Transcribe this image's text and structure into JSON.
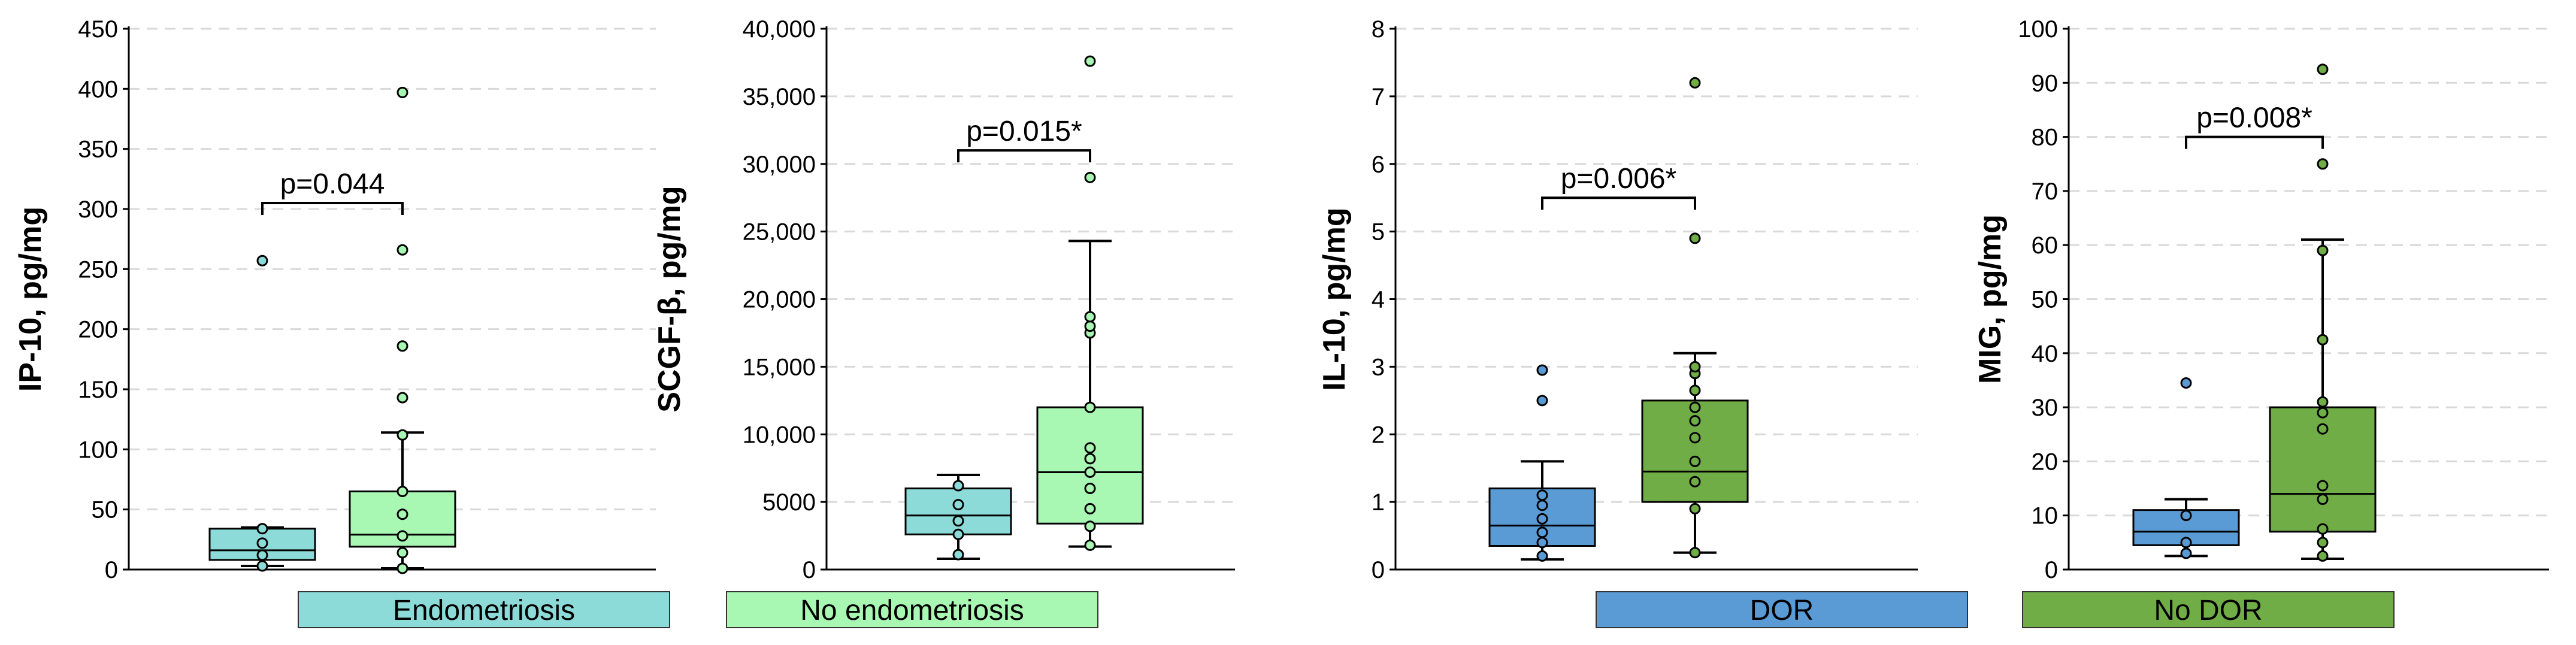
{
  "colors": {
    "endo": "#8ddbd8",
    "noendo": "#a8f7b2",
    "dor": "#5b9bd5",
    "nodor": "#70ad47"
  },
  "legend": [
    {
      "label": "Endometriosis",
      "color": "#8ddbd8"
    },
    {
      "label": "No endometriosis",
      "color": "#a8f7b2"
    },
    {
      "label": "DOR",
      "color": "#5b9bd5"
    },
    {
      "label": "No DOR",
      "color": "#70ad47"
    }
  ],
  "chart_data": [
    {
      "type": "box",
      "ylabel": "IP-10, pg/mg",
      "ylim": [
        0,
        450
      ],
      "ticks": [
        0,
        50,
        100,
        150,
        200,
        250,
        300,
        350,
        400,
        450
      ],
      "tick_labels": [
        "0",
        "50",
        "100",
        "150",
        "200",
        "250",
        "300",
        "350",
        "400",
        "450"
      ],
      "pvalue": "p=0.044",
      "pvalue_y": 305,
      "series": [
        {
          "name": "Endometriosis",
          "color": "#8ddbd8",
          "whisker_low": 3,
          "q1": 8,
          "median": 16,
          "q3": 34,
          "whisker_high": 35,
          "points": [
            3,
            12,
            22,
            34,
            257
          ]
        },
        {
          "name": "No endometriosis",
          "color": "#a8f7b2",
          "whisker_low": 1,
          "q1": 19,
          "median": 29,
          "q3": 65,
          "whisker_high": 114,
          "points": [
            1,
            14,
            28,
            46,
            65,
            112,
            143,
            186,
            266,
            397
          ]
        }
      ]
    },
    {
      "type": "box",
      "ylabel": "SCGF-β, pg/mg",
      "ylim": [
        0,
        40000
      ],
      "ticks": [
        0,
        5000,
        10000,
        15000,
        20000,
        25000,
        30000,
        35000,
        40000
      ],
      "tick_labels": [
        "0",
        "5000",
        "10,000",
        "15,000",
        "20,000",
        "25,000",
        "30,000",
        "35,000",
        "40,000"
      ],
      "pvalue": "p=0.015*",
      "pvalue_y": 31000,
      "series": [
        {
          "name": "Endometriosis",
          "color": "#8ddbd8",
          "whisker_low": 800,
          "q1": 2600,
          "median": 4000,
          "q3": 6000,
          "whisker_high": 7000,
          "points": [
            1100,
            2600,
            3600,
            4800,
            6200
          ]
        },
        {
          "name": "No endometriosis",
          "color": "#a8f7b2",
          "whisker_low": 1700,
          "q1": 3400,
          "median": 7200,
          "q3": 12000,
          "whisker_high": 24300,
          "points": [
            1800,
            3200,
            4500,
            6000,
            7200,
            8200,
            9000,
            12000,
            17500,
            18000,
            18700,
            29000,
            37600
          ]
        }
      ]
    },
    {
      "type": "box",
      "ylabel": "IL-10, pg/mg",
      "ylim": [
        0,
        8
      ],
      "ticks": [
        0,
        1,
        2,
        3,
        4,
        5,
        6,
        7,
        8
      ],
      "tick_labels": [
        "0",
        "1",
        "2",
        "3",
        "4",
        "5",
        "6",
        "7",
        "8"
      ],
      "pvalue": "p=0.006*",
      "pvalue_y": 5.5,
      "series": [
        {
          "name": "DOR",
          "color": "#5b9bd5",
          "whisker_low": 0.15,
          "q1": 0.35,
          "median": 0.65,
          "q3": 1.2,
          "whisker_high": 1.6,
          "points": [
            0.2,
            0.4,
            0.55,
            0.75,
            0.95,
            1.1,
            2.5,
            2.95
          ]
        },
        {
          "name": "No DOR",
          "color": "#70ad47",
          "whisker_low": 0.25,
          "q1": 1.0,
          "median": 1.45,
          "q3": 2.5,
          "whisker_high": 3.2,
          "points": [
            0.25,
            0.9,
            1.3,
            1.6,
            1.95,
            2.2,
            2.4,
            2.65,
            2.9,
            3.0,
            4.9,
            7.2
          ]
        }
      ]
    },
    {
      "type": "box",
      "ylabel": "MIG, pg/mg",
      "ylim": [
        0,
        100
      ],
      "ticks": [
        0,
        10,
        20,
        30,
        40,
        50,
        60,
        70,
        80,
        90,
        100
      ],
      "tick_labels": [
        "0",
        "10",
        "20",
        "30",
        "40",
        "50",
        "60",
        "70",
        "80",
        "90",
        "100"
      ],
      "pvalue": "p=0.008*",
      "pvalue_y": 80,
      "series": [
        {
          "name": "DOR",
          "color": "#5b9bd5",
          "whisker_low": 2.5,
          "q1": 4.5,
          "median": 7,
          "q3": 11,
          "whisker_high": 13,
          "points": [
            3,
            5,
            10,
            34.5
          ]
        },
        {
          "name": "No DOR",
          "color": "#70ad47",
          "whisker_low": 2,
          "q1": 7,
          "median": 14,
          "q3": 30,
          "whisker_high": 61,
          "points": [
            2.5,
            5,
            7.5,
            13,
            15.5,
            26,
            29,
            31,
            42.5,
            59,
            75,
            92.5
          ]
        }
      ]
    }
  ]
}
